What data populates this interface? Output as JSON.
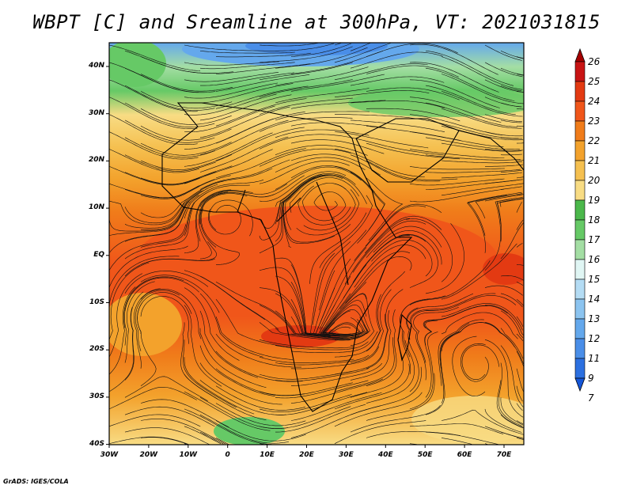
{
  "title": "WBPT [C] and Sreamline at 300hPa, VT: 2021031815",
  "credit": "GrADS: IGES/COLA",
  "map": {
    "lat_labels": [
      "40N",
      "30N",
      "20N",
      "10N",
      "EQ",
      "10S",
      "20S",
      "30S",
      "40S"
    ],
    "lon_labels": [
      "30W",
      "20W",
      "10W",
      "0",
      "10E",
      "20E",
      "30E",
      "40E",
      "50E",
      "60E",
      "70E"
    ]
  },
  "colorbar": {
    "labels": [
      "26",
      "25",
      "24",
      "23",
      "22",
      "21",
      "20",
      "19",
      "18",
      "17",
      "16",
      "15",
      "14",
      "13",
      "12",
      "11",
      "9",
      "7"
    ],
    "colors": [
      "#a50000",
      "#c81414",
      "#e33a12",
      "#f0561a",
      "#f07c1a",
      "#f3a22c",
      "#f5c050",
      "#f8dc84",
      "#4bb84b",
      "#66c966",
      "#a4dea4",
      "#e0f6f4",
      "#b4dcf4",
      "#8cc4f0",
      "#64a8ec",
      "#4a8ee8",
      "#2c70e0",
      "#1456d8"
    ]
  }
}
